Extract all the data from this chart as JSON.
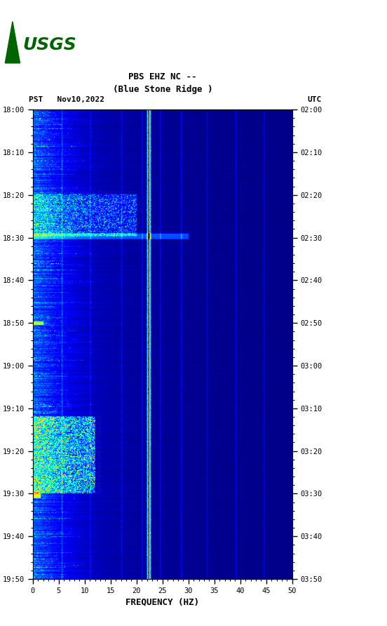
{
  "title_line1": "PBS EHZ NC --",
  "title_line2": "(Blue Stone Ridge )",
  "left_label": "PST   Nov10,2022",
  "right_label": "UTC",
  "freq_min": 0,
  "freq_max": 50,
  "xlabel": "FREQUENCY (HZ)",
  "freq_ticks": [
    0,
    5,
    10,
    15,
    20,
    25,
    30,
    35,
    40,
    45,
    50
  ],
  "pst_ticks": [
    "18:00",
    "18:10",
    "18:20",
    "18:30",
    "18:40",
    "18:50",
    "19:00",
    "19:10",
    "19:20",
    "19:30",
    "19:40",
    "19:50"
  ],
  "utc_ticks": [
    "02:00",
    "02:10",
    "02:20",
    "02:30",
    "02:40",
    "02:50",
    "03:00",
    "03:10",
    "03:20",
    "03:30",
    "03:40",
    "03:50"
  ],
  "pst_times_min": [
    0,
    10,
    20,
    30,
    40,
    50,
    60,
    70,
    80,
    90,
    100,
    110
  ],
  "fig_bg": "#ffffff",
  "vline_freqs": [
    5.5,
    11.0,
    17.0,
    21.0,
    24.5,
    28.5,
    33.5,
    39.0,
    44.5
  ],
  "vline_color": "#808060",
  "bright_line_freq": 22.3,
  "usgs_green": "#006400",
  "seed": 1234,
  "n_time": 800,
  "n_freq": 500,
  "total_minutes": 110,
  "figsize": [
    5.52,
    8.92
  ],
  "dpi": 100
}
